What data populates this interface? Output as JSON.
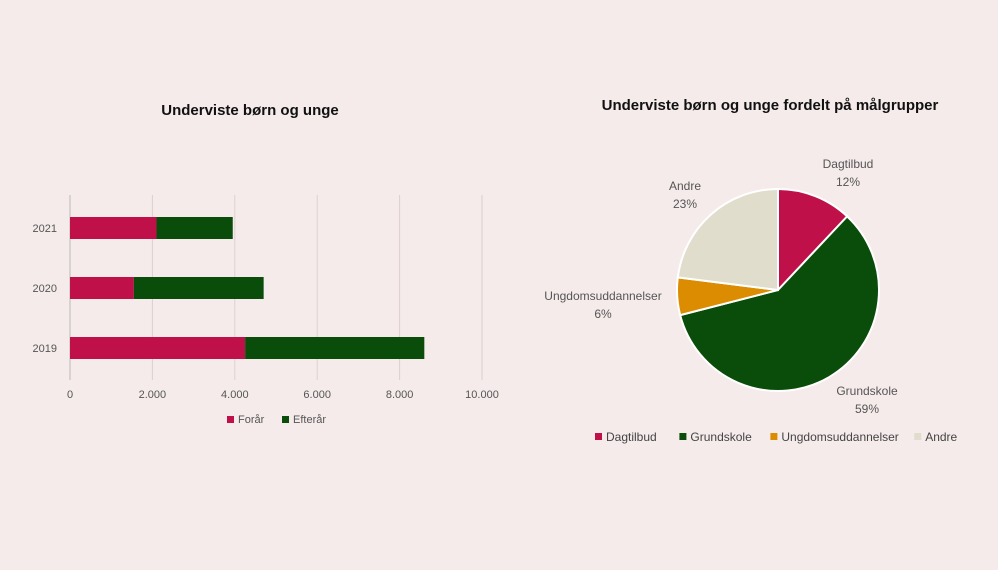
{
  "chart_data": [
    {
      "type": "bar",
      "orientation": "horizontal",
      "stacked": true,
      "title": "Underviste børn og unge",
      "categories": [
        "2021",
        "2020",
        "2019"
      ],
      "series": [
        {
          "name": "Forår",
          "values": [
            2100,
            1550,
            4250
          ],
          "color": "#c0104a"
        },
        {
          "name": "Efterår",
          "values": [
            1850,
            3150,
            4350
          ],
          "color": "#0a4d0a"
        }
      ],
      "x_ticks": [
        "0",
        "2.000",
        "4.000",
        "6.000",
        "8.000",
        "10.000"
      ],
      "xlim": [
        0,
        10000
      ],
      "grid": true,
      "legend": "bottom"
    },
    {
      "type": "pie",
      "title": "Underviste børn og unge fordelt på målgrupper",
      "slices": [
        {
          "name": "Dagtilbud",
          "value": 12,
          "label": "12%",
          "color": "#c0104a"
        },
        {
          "name": "Grundskole",
          "value": 59,
          "label": "59%",
          "color": "#0a4d0a"
        },
        {
          "name": "Ungdomsuddannelser",
          "value": 6,
          "label": "6%",
          "color": "#dc8c00"
        },
        {
          "name": "Andre",
          "value": 23,
          "label": "23%",
          "color": "#e0ddcc"
        }
      ],
      "legend": "bottom"
    }
  ]
}
